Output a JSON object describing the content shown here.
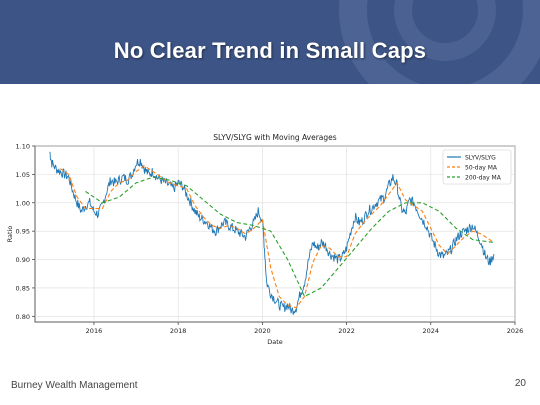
{
  "slide": {
    "title": "No Clear Trend in Small Caps",
    "footer": "Burney Wealth Management",
    "page_number": "20"
  },
  "colors": {
    "banner": "#3d5586",
    "series_ratio": "#1f77b4",
    "series_ma50": "#ff7f0e",
    "series_ma200": "#2ca02c"
  },
  "chart_data": {
    "type": "line",
    "title": "SLYV/SLYG with Moving Averages",
    "xlabel": "Date",
    "ylabel": "Ratio",
    "xlim": [
      2014.6,
      2026.0
    ],
    "ylim": [
      0.79,
      1.1
    ],
    "x_ticks": [
      2016,
      2018,
      2020,
      2022,
      2024,
      2026
    ],
    "y_ticks": [
      "0.80",
      "0.85",
      "0.90",
      "0.95",
      "1.00",
      "1.05",
      "1.10"
    ],
    "grid": true,
    "legend_position": "top-right",
    "series": [
      {
        "name": "SLYV/SLYG",
        "style": "solid",
        "points": [
          [
            2014.95,
            1.09
          ],
          [
            2015.0,
            1.07
          ],
          [
            2015.1,
            1.06
          ],
          [
            2015.2,
            1.055
          ],
          [
            2015.3,
            1.05
          ],
          [
            2015.4,
            1.045
          ],
          [
            2015.5,
            1.02
          ],
          [
            2015.6,
            1.0
          ],
          [
            2015.7,
            0.985
          ],
          [
            2015.8,
            0.995
          ],
          [
            2015.9,
            1.0
          ],
          [
            2016.0,
            0.985
          ],
          [
            2016.1,
            0.98
          ],
          [
            2016.2,
            0.995
          ],
          [
            2016.3,
            1.02
          ],
          [
            2016.4,
            1.04
          ],
          [
            2016.5,
            1.035
          ],
          [
            2016.6,
            1.04
          ],
          [
            2016.7,
            1.045
          ],
          [
            2016.8,
            1.04
          ],
          [
            2016.9,
            1.05
          ],
          [
            2017.0,
            1.07
          ],
          [
            2017.1,
            1.075
          ],
          [
            2017.2,
            1.06
          ],
          [
            2017.3,
            1.05
          ],
          [
            2017.4,
            1.055
          ],
          [
            2017.5,
            1.045
          ],
          [
            2017.6,
            1.04
          ],
          [
            2017.7,
            1.035
          ],
          [
            2017.8,
            1.03
          ],
          [
            2017.9,
            1.025
          ],
          [
            2018.0,
            1.035
          ],
          [
            2018.1,
            1.03
          ],
          [
            2018.2,
            1.015
          ],
          [
            2018.3,
            1.0
          ],
          [
            2018.4,
            0.985
          ],
          [
            2018.5,
            0.975
          ],
          [
            2018.6,
            0.97
          ],
          [
            2018.7,
            0.965
          ],
          [
            2018.8,
            0.955
          ],
          [
            2018.9,
            0.95
          ],
          [
            2019.0,
            0.96
          ],
          [
            2019.1,
            0.965
          ],
          [
            2019.2,
            0.96
          ],
          [
            2019.3,
            0.955
          ],
          [
            2019.4,
            0.95
          ],
          [
            2019.5,
            0.945
          ],
          [
            2019.6,
            0.94
          ],
          [
            2019.7,
            0.955
          ],
          [
            2019.8,
            0.965
          ],
          [
            2019.9,
            0.985
          ],
          [
            2020.0,
            0.97
          ],
          [
            2020.05,
            0.92
          ],
          [
            2020.1,
            0.86
          ],
          [
            2020.2,
            0.84
          ],
          [
            2020.3,
            0.83
          ],
          [
            2020.4,
            0.82
          ],
          [
            2020.5,
            0.815
          ],
          [
            2020.6,
            0.82
          ],
          [
            2020.7,
            0.81
          ],
          [
            2020.8,
            0.815
          ],
          [
            2020.9,
            0.84
          ],
          [
            2021.0,
            0.86
          ],
          [
            2021.1,
            0.9
          ],
          [
            2021.2,
            0.93
          ],
          [
            2021.3,
            0.92
          ],
          [
            2021.4,
            0.93
          ],
          [
            2021.5,
            0.925
          ],
          [
            2021.6,
            0.91
          ],
          [
            2021.7,
            0.905
          ],
          [
            2021.8,
            0.9
          ],
          [
            2021.9,
            0.905
          ],
          [
            2022.0,
            0.92
          ],
          [
            2022.1,
            0.95
          ],
          [
            2022.2,
            0.975
          ],
          [
            2022.3,
            0.965
          ],
          [
            2022.4,
            0.97
          ],
          [
            2022.5,
            0.985
          ],
          [
            2022.6,
            0.99
          ],
          [
            2022.7,
            1.0
          ],
          [
            2022.8,
            1.005
          ],
          [
            2022.9,
            1.01
          ],
          [
            2023.0,
            1.03
          ],
          [
            2023.1,
            1.045
          ],
          [
            2023.2,
            1.03
          ],
          [
            2023.3,
            0.99
          ],
          [
            2023.4,
            0.98
          ],
          [
            2023.5,
            1.005
          ],
          [
            2023.6,
            1.0
          ],
          [
            2023.7,
            0.985
          ],
          [
            2023.8,
            0.97
          ],
          [
            2023.9,
            0.96
          ],
          [
            2024.0,
            0.94
          ],
          [
            2024.1,
            0.925
          ],
          [
            2024.2,
            0.91
          ],
          [
            2024.3,
            0.905
          ],
          [
            2024.4,
            0.91
          ],
          [
            2024.5,
            0.92
          ],
          [
            2024.6,
            0.935
          ],
          [
            2024.7,
            0.945
          ],
          [
            2024.8,
            0.95
          ],
          [
            2024.9,
            0.955
          ],
          [
            2025.0,
            0.96
          ],
          [
            2025.1,
            0.945
          ],
          [
            2025.2,
            0.93
          ],
          [
            2025.3,
            0.905
          ],
          [
            2025.4,
            0.895
          ],
          [
            2025.5,
            0.91
          ]
        ]
      },
      {
        "name": "50-day MA",
        "style": "dashed",
        "points": [
          [
            2015.2,
            1.06
          ],
          [
            2015.4,
            1.05
          ],
          [
            2015.6,
            1.01
          ],
          [
            2015.8,
            0.99
          ],
          [
            2016.0,
            0.99
          ],
          [
            2016.2,
            0.99
          ],
          [
            2016.4,
            1.02
          ],
          [
            2016.6,
            1.035
          ],
          [
            2016.8,
            1.04
          ],
          [
            2017.0,
            1.055
          ],
          [
            2017.2,
            1.065
          ],
          [
            2017.4,
            1.055
          ],
          [
            2017.6,
            1.045
          ],
          [
            2017.8,
            1.035
          ],
          [
            2018.0,
            1.03
          ],
          [
            2018.2,
            1.025
          ],
          [
            2018.4,
            0.995
          ],
          [
            2018.6,
            0.975
          ],
          [
            2018.8,
            0.96
          ],
          [
            2019.0,
            0.955
          ],
          [
            2019.2,
            0.96
          ],
          [
            2019.4,
            0.955
          ],
          [
            2019.6,
            0.945
          ],
          [
            2019.8,
            0.955
          ],
          [
            2020.0,
            0.97
          ],
          [
            2020.2,
            0.885
          ],
          [
            2020.4,
            0.835
          ],
          [
            2020.6,
            0.82
          ],
          [
            2020.8,
            0.815
          ],
          [
            2021.0,
            0.835
          ],
          [
            2021.2,
            0.895
          ],
          [
            2021.4,
            0.925
          ],
          [
            2021.6,
            0.92
          ],
          [
            2021.8,
            0.905
          ],
          [
            2022.0,
            0.905
          ],
          [
            2022.2,
            0.945
          ],
          [
            2022.4,
            0.965
          ],
          [
            2022.6,
            0.98
          ],
          [
            2022.8,
            0.995
          ],
          [
            2023.0,
            1.015
          ],
          [
            2023.2,
            1.035
          ],
          [
            2023.4,
            1.005
          ],
          [
            2023.6,
            0.995
          ],
          [
            2023.8,
            0.985
          ],
          [
            2024.0,
            0.955
          ],
          [
            2024.2,
            0.925
          ],
          [
            2024.4,
            0.91
          ],
          [
            2024.6,
            0.925
          ],
          [
            2024.8,
            0.94
          ],
          [
            2025.0,
            0.95
          ],
          [
            2025.2,
            0.945
          ],
          [
            2025.5,
            0.93
          ]
        ]
      },
      {
        "name": "200-day MA",
        "style": "dashed",
        "points": [
          [
            2015.8,
            1.02
          ],
          [
            2016.2,
            1.0
          ],
          [
            2016.6,
            1.01
          ],
          [
            2017.0,
            1.035
          ],
          [
            2017.4,
            1.045
          ],
          [
            2017.8,
            1.04
          ],
          [
            2018.2,
            1.03
          ],
          [
            2018.6,
            1.005
          ],
          [
            2019.0,
            0.98
          ],
          [
            2019.4,
            0.965
          ],
          [
            2019.8,
            0.96
          ],
          [
            2020.2,
            0.95
          ],
          [
            2020.6,
            0.9
          ],
          [
            2021.0,
            0.835
          ],
          [
            2021.4,
            0.85
          ],
          [
            2021.8,
            0.885
          ],
          [
            2022.2,
            0.92
          ],
          [
            2022.6,
            0.955
          ],
          [
            2023.0,
            0.985
          ],
          [
            2023.4,
            1.0
          ],
          [
            2023.8,
            1.0
          ],
          [
            2024.2,
            0.985
          ],
          [
            2024.6,
            0.955
          ],
          [
            2025.0,
            0.935
          ],
          [
            2025.5,
            0.93
          ]
        ]
      }
    ]
  }
}
